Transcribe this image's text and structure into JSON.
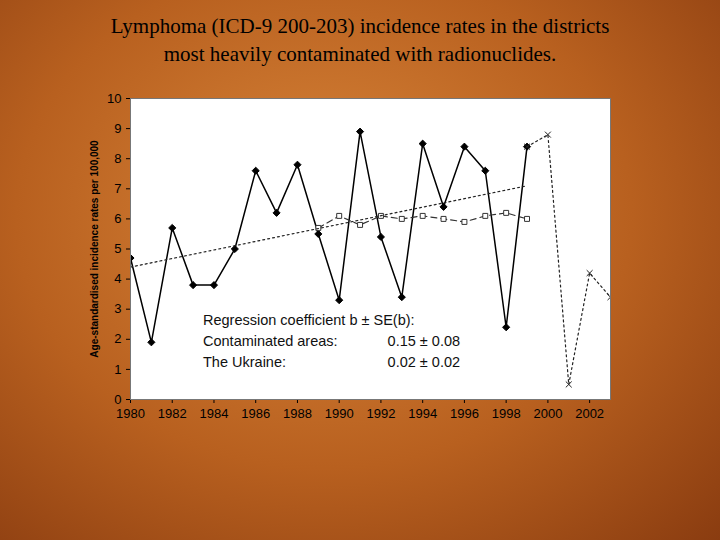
{
  "chart_data": {
    "type": "line",
    "title": [
      "Lymphoma (ICD-9 200-203) incidence rates in the districts",
      "most heavily contaminated with radionuclides."
    ],
    "y_label": "Age-standardised incidence rates per 100,000",
    "x": [
      1980,
      1981,
      1982,
      1983,
      1984,
      1985,
      1986,
      1987,
      1988,
      1989,
      1990,
      1991,
      1992,
      1993,
      1994,
      1995,
      1996,
      1997,
      1998,
      1999,
      2000,
      2001,
      2002,
      2003
    ],
    "series": [
      {
        "color": "#000000",
        "line_style": "solid",
        "marker": "diamond",
        "values": [
          4.7,
          1.9,
          5.7,
          3.8,
          3.8,
          5.0,
          7.6,
          6.2,
          7.8,
          5.5,
          3.3,
          8.9,
          5.4,
          3.4,
          8.5,
          6.4,
          8.4,
          7.6,
          2.4,
          8.4,
          null,
          null,
          null,
          null
        ]
      },
      {
        "color": "#222222",
        "line_style": "dotted",
        "marker": "x",
        "values": [
          null,
          null,
          null,
          null,
          null,
          null,
          null,
          null,
          null,
          null,
          null,
          null,
          null,
          null,
          null,
          null,
          null,
          null,
          null,
          8.4,
          8.8,
          0.5,
          4.2,
          3.4
        ]
      },
      {
        "color": "#333333",
        "line_style": "dashed",
        "marker": "square",
        "values": [
          null,
          null,
          null,
          null,
          null,
          null,
          null,
          null,
          null,
          5.7,
          6.1,
          5.8,
          6.1,
          6.0,
          6.1,
          6.0,
          5.9,
          6.1,
          6.2,
          6.0,
          null,
          null,
          null,
          null
        ]
      },
      {
        "color": "#222222",
        "line_style": "dotted",
        "marker": "none",
        "x": [
          1980,
          1999
        ],
        "values": [
          4.4,
          7.1
        ]
      }
    ],
    "xlim": [
      1980,
      2003
    ],
    "xticks": [
      1980,
      1982,
      1984,
      1986,
      1988,
      1990,
      1992,
      1994,
      1996,
      1998,
      2000,
      2002
    ],
    "ylim": [
      0,
      10
    ],
    "yticks": [
      0,
      1,
      2,
      3,
      4,
      5,
      6,
      7,
      8,
      9,
      10
    ],
    "grid": false,
    "annotation": {
      "heading": "Regression coefficient b ± SE(b):",
      "rows": [
        [
          "Contaminated areas:",
          "0.15 ± 0.08"
        ],
        [
          "The Ukraine:",
          "0.02 ± 0.02"
        ]
      ]
    }
  }
}
